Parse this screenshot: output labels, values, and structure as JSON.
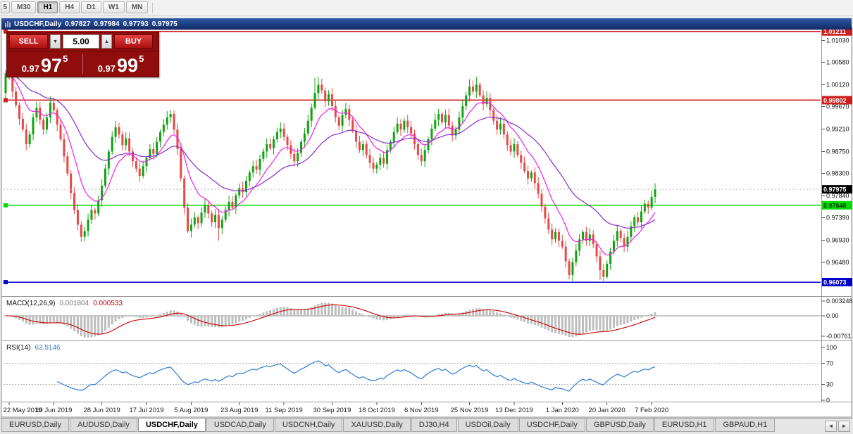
{
  "toolbar": {
    "periods": [
      "5",
      "M30",
      "H1",
      "H4",
      "D1",
      "W1",
      "MN"
    ],
    "active": "H1"
  },
  "icons": {
    "up": "▲",
    "down": "▼",
    "left": "◄",
    "right": "►"
  },
  "chart_header": {
    "symbol": "USDCHF,Daily",
    "open": "0.97827",
    "high": "0.97984",
    "low": "0.97793",
    "close": "0.97975"
  },
  "one_click": {
    "sell_label": "SELL",
    "buy_label": "BUY",
    "volume": "5.00",
    "sell": {
      "prefix": "0.97",
      "big": "97",
      "sup": "5"
    },
    "buy": {
      "prefix": "0.97",
      "big": "99",
      "sup": "5"
    }
  },
  "macd_panel": {
    "name": "MACD(12,26,9)",
    "value_main": "0.001804",
    "value_signal": "0.000533",
    "axis_labels": [
      "0.003248",
      "0.00",
      "-0.00761"
    ]
  },
  "rsi_panel": {
    "name": "RSI(14)",
    "value": "63.5146",
    "axis_labels": [
      "100",
      "70",
      "30",
      "0"
    ]
  },
  "tabs": {
    "active_index": 2,
    "items": [
      {
        "label": "EURUSD,Daily"
      },
      {
        "label": "AUDUSD,Daily"
      },
      {
        "label": "USDCHF,Daily"
      },
      {
        "label": "USDCAD,Daily"
      },
      {
        "label": "USDCNH,Daily"
      },
      {
        "label": "XAUUSD,Daily"
      },
      {
        "label": "DJ30,H4"
      },
      {
        "label": "USDOil,Daily"
      },
      {
        "label": "USDCHF,Daily"
      },
      {
        "label": "GBPUSD,Daily"
      },
      {
        "label": "EURUSD,H1"
      },
      {
        "label": "GBPAUD,H1"
      }
    ]
  },
  "chart_data": {
    "type": "candlestick",
    "symbol": "USDCHF",
    "timeframe": "Daily",
    "first_open": 0.9995,
    "closes": [
      1.0035,
      1.003,
      0.9998,
      0.997,
      0.9942,
      0.992,
      0.989,
      0.991,
      0.9945,
      0.9965,
      0.994,
      0.992,
      0.9945,
      0.9975,
      0.996,
      0.993,
      0.99,
      0.9865,
      0.983,
      0.979,
      0.9755,
      0.9725,
      0.97,
      0.9712,
      0.9735,
      0.9755,
      0.9748,
      0.9775,
      0.9805,
      0.984,
      0.9875,
      0.9905,
      0.9925,
      0.991,
      0.9888,
      0.9902,
      0.9875,
      0.9855,
      0.984,
      0.9825,
      0.9845,
      0.9862,
      0.988,
      0.987,
      0.9895,
      0.9915,
      0.993,
      0.9945,
      0.9952,
      0.992,
      0.988,
      0.982,
      0.976,
      0.9712,
      0.9725,
      0.974,
      0.9728,
      0.975,
      0.9765,
      0.9748,
      0.973,
      0.9745,
      0.9718,
      0.9735,
      0.9755,
      0.9772,
      0.976,
      0.9785,
      0.98,
      0.9792,
      0.9815,
      0.9832,
      0.9845,
      0.9838,
      0.986,
      0.9875,
      0.989,
      0.9882,
      0.99,
      0.9915,
      0.9922,
      0.9905,
      0.9888,
      0.987,
      0.9855,
      0.9872,
      0.9895,
      0.9912,
      0.9938,
      0.9965,
      0.9995,
      1.0012,
      1.0,
      0.9978,
      0.9992,
      0.9968,
      0.9945,
      0.9928,
      0.995,
      0.9962,
      0.994,
      0.9918,
      0.9895,
      0.9878,
      0.989,
      0.9868,
      0.9852,
      0.984,
      0.9848,
      0.9862,
      0.985,
      0.9878,
      0.9895,
      0.9915,
      0.9932,
      0.992,
      0.9938,
      0.9925,
      0.9912,
      0.989,
      0.9868,
      0.9855,
      0.9878,
      0.99,
      0.9922,
      0.994,
      0.9952,
      0.9935,
      0.995,
      0.9928,
      0.9908,
      0.992,
      0.9945,
      0.9968,
      0.999,
      1.0008,
      0.9998,
      1.0012,
      0.999,
      0.9972,
      0.9985,
      0.996,
      0.9938,
      0.992,
      0.9932,
      0.991,
      0.9888,
      0.9875,
      0.989,
      0.9868,
      0.9852,
      0.9835,
      0.982,
      0.9832,
      0.981,
      0.9788,
      0.9762,
      0.9738,
      0.9715,
      0.9695,
      0.971,
      0.9692,
      0.968,
      0.965,
      0.9622,
      0.9648,
      0.9672,
      0.9695,
      0.971,
      0.9692,
      0.9705,
      0.9685,
      0.966,
      0.9632,
      0.9618,
      0.9645,
      0.967,
      0.9692,
      0.9712,
      0.9698,
      0.968,
      0.97,
      0.9722,
      0.974,
      0.973,
      0.9752,
      0.9768,
      0.976,
      0.9782,
      0.97975
    ],
    "wick_overrides": {
      "0": {
        "h": 1.0042
      },
      "22": {
        "l": 0.969
      },
      "62": {
        "l": 0.9692
      },
      "90": {
        "h": 1.0026
      },
      "91": {
        "h": 1.0028
      },
      "135": {
        "h": 1.0023
      },
      "137": {
        "h": 1.0028
      },
      "164": {
        "l": 0.9613
      },
      "173": {
        "l": 0.9612
      },
      "174": {
        "l": 0.9616
      }
    },
    "x_labels": [
      "22 May 2019",
      "10 Jun 2019",
      "28 Jun 2019",
      "17 Jul 2019",
      "5 Aug 2019",
      "23 Aug 2019",
      "11 Sep 2019",
      "30 Sep 2019",
      "18 Oct 2019",
      "6 Nov 2019",
      "25 Nov 2019",
      "13 Dec 2019",
      "1 Jan 2020",
      "20 Jan 2020",
      "7 Feb 2020"
    ],
    "x_label_indices": [
      1,
      14,
      28,
      41,
      54,
      68,
      81,
      95,
      108,
      121,
      135,
      148,
      162,
      175,
      188
    ],
    "y_ticks": [
      1.0103,
      1.0058,
      1.0012,
      0.9967,
      0.9921,
      0.9875,
      0.983,
      0.9784,
      0.9739,
      0.9693,
      0.9648
    ],
    "ylim": [
      0.958,
      1.0125
    ],
    "current_price": 0.97975,
    "levels": [
      {
        "value": 1.01211,
        "color": "#cf1d1d",
        "label_bg": "#cf1d1d",
        "label_fg": "#ffffff"
      },
      {
        "value": 0.99802,
        "color": "#cf1d1d",
        "label_bg": "#cf1d1d",
        "label_fg": "#ffffff"
      },
      {
        "value": 0.97648,
        "color": "#00dd00",
        "label_bg": "#00dd00",
        "label_fg": "#063306"
      },
      {
        "value": 0.96073,
        "color": "#0000cc",
        "label_bg": "#0000cc",
        "label_fg": "#ffffff"
      }
    ],
    "overlays": [
      {
        "name": "EMA fast",
        "period": 10,
        "color": "#f020f0"
      },
      {
        "name": "EMA slow",
        "period": 30,
        "color": "#8a2acd"
      }
    ],
    "up_color": "#0fa40f",
    "down_color": "#e84848",
    "macd": {
      "fast": 12,
      "slow": 26,
      "signal": 9,
      "hist_color": "#bdbdbd",
      "signal_color": "#cc0000"
    },
    "rsi": {
      "period": 14,
      "color": "#2d7bd6",
      "levels": [
        70,
        30
      ]
    }
  }
}
